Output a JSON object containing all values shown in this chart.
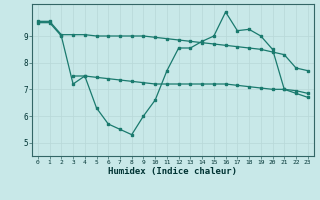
{
  "xlabel": "Humidex (Indice chaleur)",
  "bg_color": "#c8e8e8",
  "line_color": "#1a7a6e",
  "grid_color": "#b8d8d8",
  "xlim": [
    -0.5,
    23.5
  ],
  "ylim": [
    4.5,
    10.2
  ],
  "yticks": [
    5,
    6,
    7,
    8,
    9
  ],
  "xticks": [
    0,
    1,
    2,
    3,
    4,
    5,
    6,
    7,
    8,
    9,
    10,
    11,
    12,
    13,
    14,
    15,
    16,
    17,
    18,
    19,
    20,
    21,
    22,
    23
  ],
  "line1_x": [
    0,
    1,
    2,
    3,
    4,
    5,
    6,
    7,
    8,
    9,
    10,
    11,
    12,
    13,
    14,
    15,
    16,
    17,
    18,
    19,
    20,
    21,
    22,
    23
  ],
  "line1_y": [
    9.55,
    9.55,
    9.05,
    9.05,
    9.05,
    9.0,
    9.0,
    9.0,
    9.0,
    9.0,
    8.95,
    8.9,
    8.85,
    8.8,
    8.75,
    8.7,
    8.65,
    8.6,
    8.55,
    8.5,
    8.4,
    8.3,
    7.8,
    7.7
  ],
  "line2_x": [
    0,
    1,
    2,
    3,
    4,
    5,
    6,
    7,
    8,
    9,
    10,
    11,
    12,
    13,
    14,
    15,
    16,
    17,
    18,
    19,
    20,
    21,
    22,
    23
  ],
  "line2_y": [
    9.5,
    9.5,
    9.0,
    7.2,
    7.5,
    6.3,
    5.7,
    5.5,
    5.3,
    6.0,
    6.6,
    7.7,
    8.55,
    8.55,
    8.8,
    9.0,
    9.9,
    9.2,
    9.25,
    9.0,
    8.5,
    7.0,
    6.85,
    6.7
  ],
  "line3_x": [
    3,
    4,
    5,
    6,
    7,
    8,
    9,
    10,
    11,
    12,
    13,
    14,
    15,
    16,
    17,
    18,
    19,
    20,
    21,
    22,
    23
  ],
  "line3_y": [
    7.5,
    7.5,
    7.45,
    7.4,
    7.35,
    7.3,
    7.25,
    7.2,
    7.2,
    7.2,
    7.2,
    7.2,
    7.2,
    7.2,
    7.15,
    7.1,
    7.05,
    7.0,
    7.0,
    6.95,
    6.85
  ]
}
